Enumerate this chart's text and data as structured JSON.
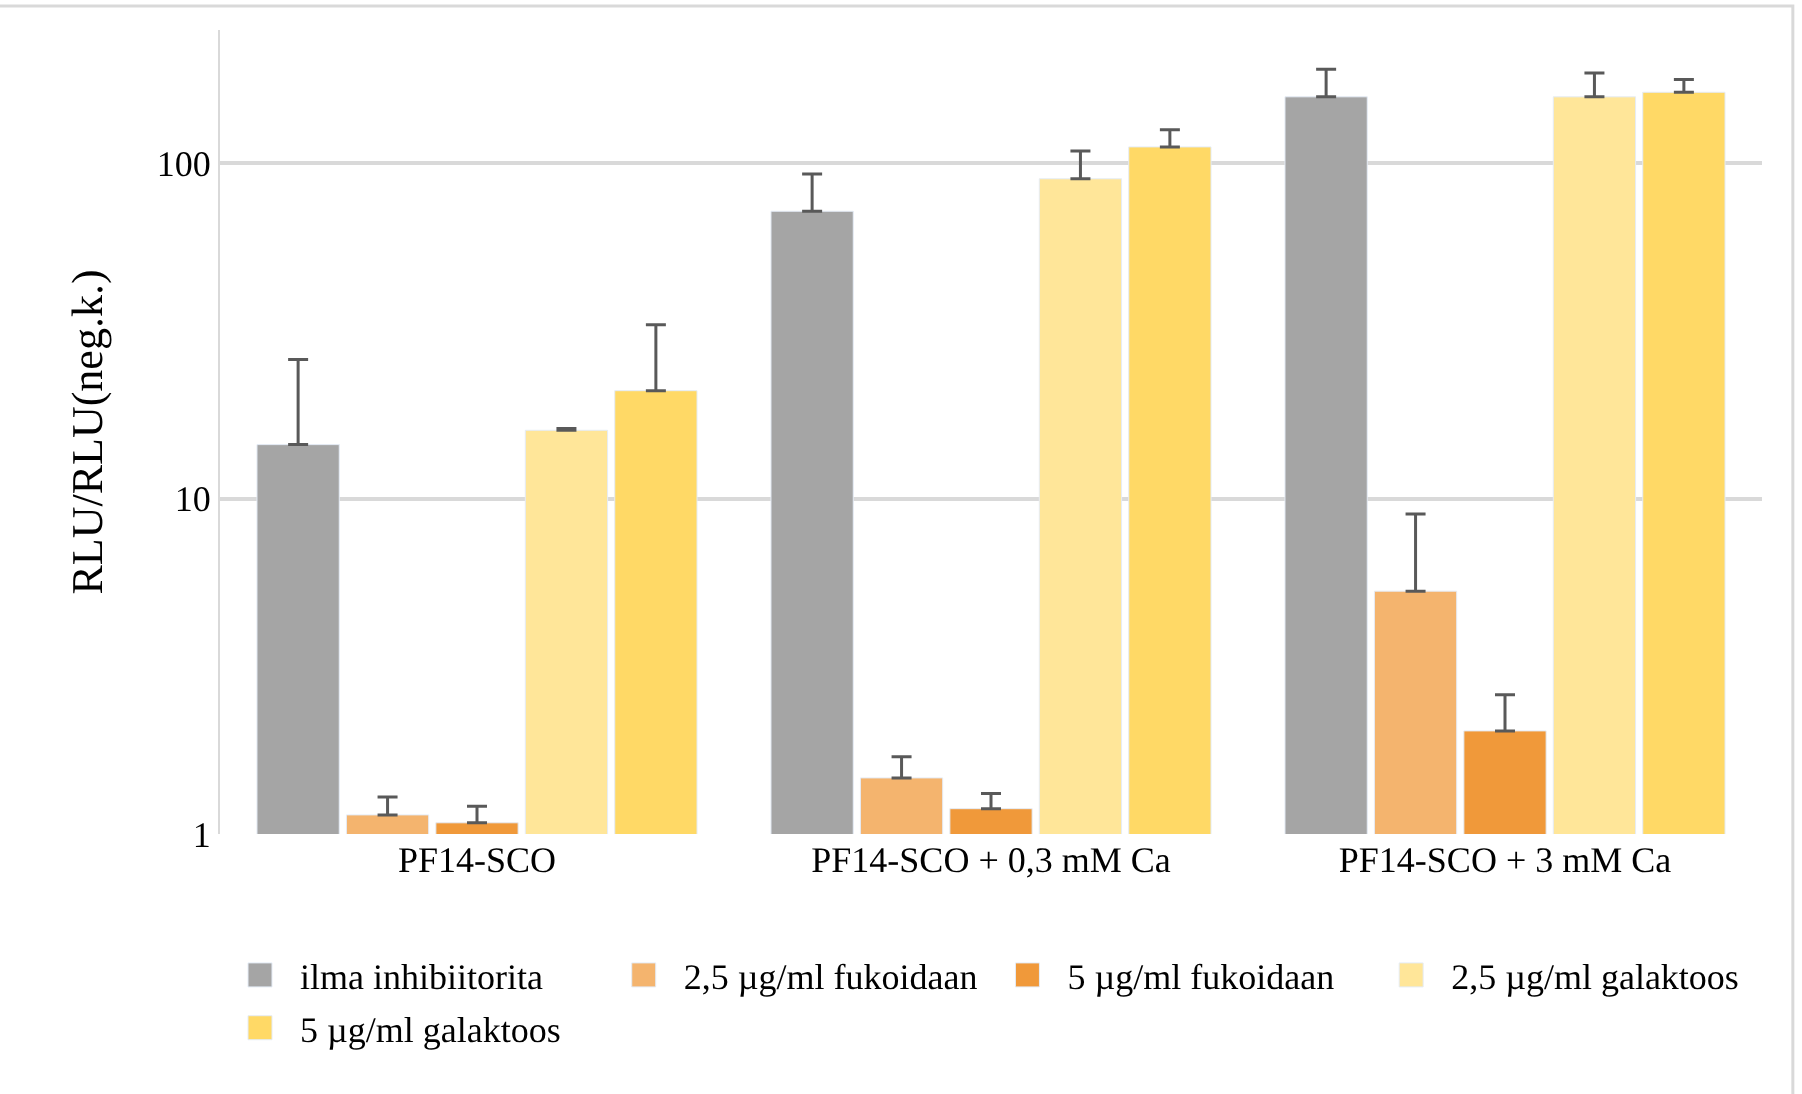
{
  "chart_data": {
    "type": "bar",
    "ylabel": "RLU/RLU(neg.k.)",
    "categories": [
      "PF14-SCO",
      "PF14-SCO + 0,3 mM Ca",
      "PF14-SCO + 3 mM Ca"
    ],
    "log": true,
    "ylim": [
      1,
      250
    ],
    "yticks": [
      1,
      10,
      100
    ],
    "grid": "y",
    "legend": "bottom",
    "series": [
      {
        "name": "ilma inhibiitorita",
        "color": "#a5a5a5",
        "values": [
          14.5,
          72,
          158
        ],
        "errors": [
          [
            14.5,
            26
          ],
          [
            72,
            93
          ],
          [
            158,
            191
          ]
        ]
      },
      {
        "name": "2,5 µg/ml fukoidaan",
        "color": "#f4b46e",
        "values": [
          1.14,
          1.47,
          5.3
        ],
        "errors": [
          [
            1.14,
            1.29
          ],
          [
            1.47,
            1.7
          ],
          [
            5.3,
            9
          ]
        ]
      },
      {
        "name": "5 µg/ml fukoidaan",
        "color": "#f0993a",
        "values": [
          1.08,
          1.19,
          2.03
        ],
        "errors": [
          [
            1.08,
            1.21
          ],
          [
            1.19,
            1.32
          ],
          [
            2.03,
            2.6
          ]
        ]
      },
      {
        "name": "2,5 µg/ml galaktoos",
        "color": "#ffe699",
        "values": [
          16,
          90,
          158
        ],
        "errors": [
          [
            16,
            16.2
          ],
          [
            90,
            109
          ],
          [
            158,
            186
          ]
        ]
      },
      {
        "name": "5 µg/ml galaktoos",
        "color": "#ffd966",
        "values": [
          21,
          112,
          163
        ],
        "errors": [
          [
            21,
            33
          ],
          [
            112,
            126
          ],
          [
            163,
            178
          ]
        ]
      }
    ]
  }
}
